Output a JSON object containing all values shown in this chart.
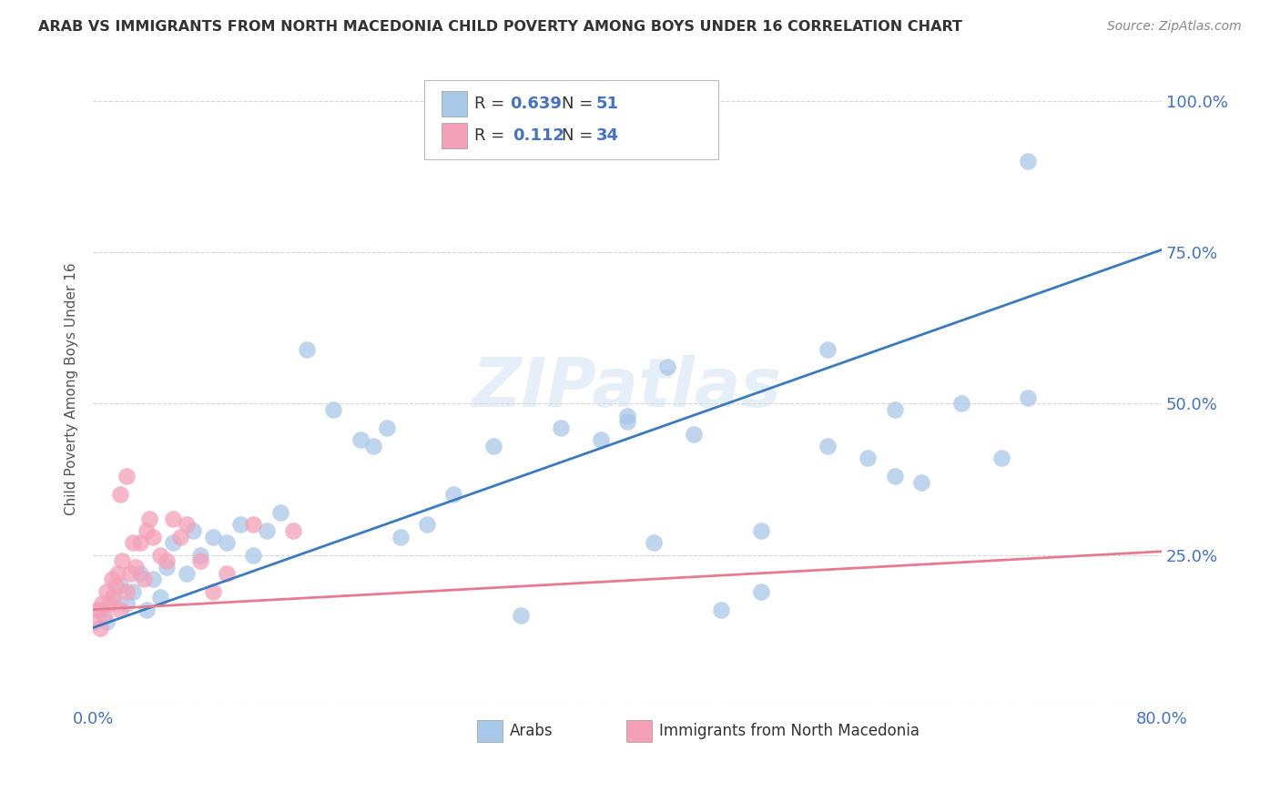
{
  "title": "ARAB VS IMMIGRANTS FROM NORTH MACEDONIA CHILD POVERTY AMONG BOYS UNDER 16 CORRELATION CHART",
  "source": "Source: ZipAtlas.com",
  "ylabel": "Child Poverty Among Boys Under 16",
  "xlim": [
    0.0,
    0.8
  ],
  "ylim": [
    0.0,
    1.05
  ],
  "ytick_vals": [
    0.0,
    0.25,
    0.5,
    0.75,
    1.0
  ],
  "ytick_labels": [
    "",
    "25.0%",
    "50.0%",
    "75.0%",
    "100.0%"
  ],
  "xtick_vals": [
    0.0,
    0.2,
    0.4,
    0.6,
    0.8
  ],
  "xtick_labels": [
    "0.0%",
    "",
    "",
    "",
    "80.0%"
  ],
  "watermark": "ZIPatlas",
  "arab_color": "#a8c8e8",
  "mac_color": "#f4a0b8",
  "arab_line_color": "#3a7abf",
  "mac_line_color": "#e87a90",
  "grid_color": "#cccccc",
  "tick_color": "#4472c4",
  "arab_intercept": 0.13,
  "arab_slope": 0.78,
  "mac_intercept": 0.16,
  "mac_slope": 0.12,
  "arab_x": [
    0.005,
    0.01,
    0.015,
    0.02,
    0.025,
    0.03,
    0.035,
    0.04,
    0.045,
    0.05,
    0.055,
    0.06,
    0.07,
    0.075,
    0.08,
    0.09,
    0.1,
    0.11,
    0.12,
    0.13,
    0.14,
    0.16,
    0.18,
    0.2,
    0.21,
    0.22,
    0.23,
    0.25,
    0.27,
    0.3,
    0.32,
    0.35,
    0.38,
    0.4,
    0.42,
    0.45,
    0.47,
    0.5,
    0.55,
    0.58,
    0.6,
    0.62,
    0.65,
    0.68,
    0.7,
    0.4,
    0.43,
    0.5,
    0.55,
    0.6,
    0.7
  ],
  "arab_y": [
    0.16,
    0.14,
    0.18,
    0.2,
    0.17,
    0.19,
    0.22,
    0.16,
    0.21,
    0.18,
    0.23,
    0.27,
    0.22,
    0.29,
    0.25,
    0.28,
    0.27,
    0.3,
    0.25,
    0.29,
    0.32,
    0.59,
    0.49,
    0.44,
    0.43,
    0.46,
    0.28,
    0.3,
    0.35,
    0.43,
    0.15,
    0.46,
    0.44,
    0.47,
    0.27,
    0.45,
    0.16,
    0.19,
    0.43,
    0.41,
    0.38,
    0.37,
    0.5,
    0.41,
    0.51,
    0.48,
    0.56,
    0.29,
    0.59,
    0.49,
    0.9
  ],
  "mac_x": [
    0.0,
    0.003,
    0.005,
    0.007,
    0.008,
    0.01,
    0.012,
    0.014,
    0.015,
    0.017,
    0.018,
    0.02,
    0.022,
    0.025,
    0.028,
    0.03,
    0.032,
    0.035,
    0.038,
    0.04,
    0.042,
    0.045,
    0.05,
    0.055,
    0.06,
    0.065,
    0.07,
    0.08,
    0.09,
    0.1,
    0.02,
    0.025,
    0.12,
    0.15
  ],
  "mac_y": [
    0.14,
    0.16,
    0.13,
    0.17,
    0.15,
    0.19,
    0.17,
    0.21,
    0.18,
    0.2,
    0.22,
    0.16,
    0.24,
    0.19,
    0.22,
    0.27,
    0.23,
    0.27,
    0.21,
    0.29,
    0.31,
    0.28,
    0.25,
    0.24,
    0.31,
    0.28,
    0.3,
    0.24,
    0.19,
    0.22,
    0.35,
    0.38,
    0.3,
    0.29
  ]
}
